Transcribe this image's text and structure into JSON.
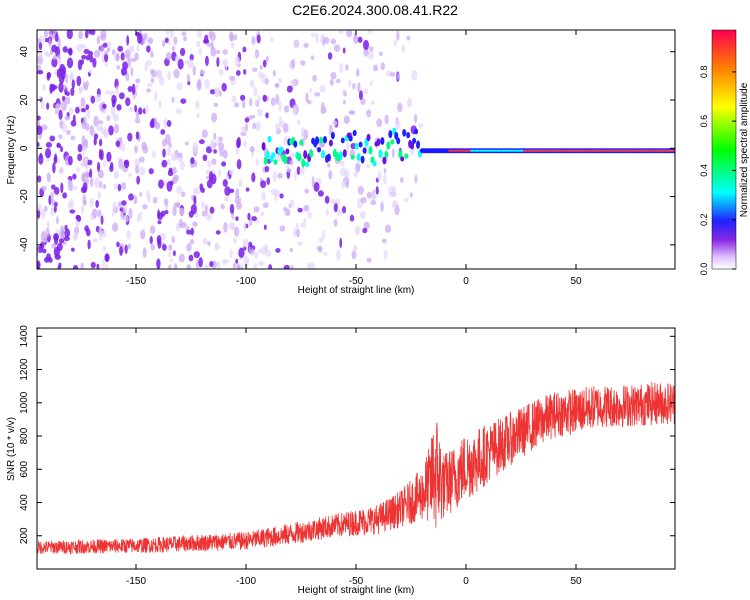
{
  "title": "C2E6.2024.300.08.41.R22",
  "chart_data": [
    {
      "type": "heatmap",
      "xlabel": "Height of straight line (km)",
      "ylabel": "Frequency (Hz)",
      "xlim": [
        -195,
        95
      ],
      "ylim": [
        -50,
        49
      ],
      "xticks": [
        -150,
        -100,
        -50,
        0,
        50
      ],
      "yticks": [
        -40,
        -20,
        0,
        20,
        40
      ],
      "colorbar": {
        "label": "Normalized spectral amplitude",
        "range": [
          0,
          0.97
        ],
        "ticks": [
          0,
          0.2,
          0.4,
          0.6,
          0.8
        ]
      },
      "features": {
        "noise_region_x": [
          -195,
          -20
        ],
        "signal_ridge_start_x": -92,
        "signal_ridge_freq_hz": 0,
        "strong_peak_x": [
          -10,
          0
        ]
      }
    },
    {
      "type": "line",
      "xlabel": "Height of straight line (km)",
      "ylabel": "SNR (10 * v/v)",
      "xlim": [
        -195,
        95
      ],
      "ylim": [
        0,
        1450
      ],
      "xticks": [
        -150,
        -100,
        -50,
        0,
        50
      ],
      "yticks": [
        200,
        400,
        600,
        800,
        1000,
        1200,
        1400
      ],
      "color": "#ee3333",
      "series_envelope": {
        "x": [
          -195,
          -150,
          -100,
          -80,
          -60,
          -40,
          -30,
          -20,
          -16,
          -14,
          -10,
          -5,
          0,
          5,
          10,
          20,
          30,
          40,
          50,
          60,
          70,
          80,
          90,
          95
        ],
        "mean": [
          130,
          140,
          170,
          210,
          260,
          300,
          360,
          450,
          520,
          600,
          500,
          550,
          620,
          650,
          700,
          780,
          860,
          930,
          950,
          980,
          980,
          990,
          1000,
          1000
        ],
        "spread": [
          40,
          45,
          55,
          65,
          70,
          90,
          110,
          160,
          250,
          400,
          200,
          200,
          210,
          200,
          180,
          160,
          150,
          140,
          140,
          130,
          130,
          130,
          130,
          130
        ]
      }
    }
  ]
}
